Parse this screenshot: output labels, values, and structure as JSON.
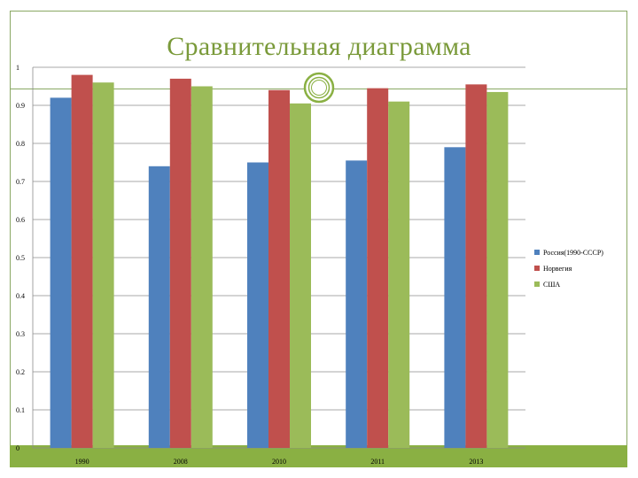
{
  "slide": {
    "title": "Сравнительная диаграмма"
  },
  "colors": {
    "frame": "#8aa864",
    "title": "#7a9a3a",
    "bottom_band": "#8ab043"
  },
  "chart_data": {
    "type": "bar",
    "title": "Сравнительная диаграмма",
    "categories": [
      "1990",
      "2008",
      "2010",
      "2011",
      "2013"
    ],
    "series": [
      {
        "name": "Россия(1990-СССР)",
        "color": "#4f81bd",
        "values": [
          0.92,
          0.74,
          0.75,
          0.755,
          0.79
        ]
      },
      {
        "name": "Норвегия",
        "color": "#c0504d",
        "values": [
          0.98,
          0.97,
          0.94,
          0.945,
          0.955
        ]
      },
      {
        "name": "США",
        "color": "#9bbb59",
        "values": [
          0.96,
          0.95,
          0.905,
          0.91,
          0.935
        ]
      }
    ],
    "ylim": [
      0,
      1
    ],
    "yticks": [
      "0",
      "0.1",
      "0.2",
      "0.3",
      "0.4",
      "0.5",
      "0.6",
      "0.7",
      "0.8",
      "0.9",
      "1"
    ],
    "xlabel": "",
    "ylabel": "",
    "grid": true,
    "legend_position": "right"
  }
}
